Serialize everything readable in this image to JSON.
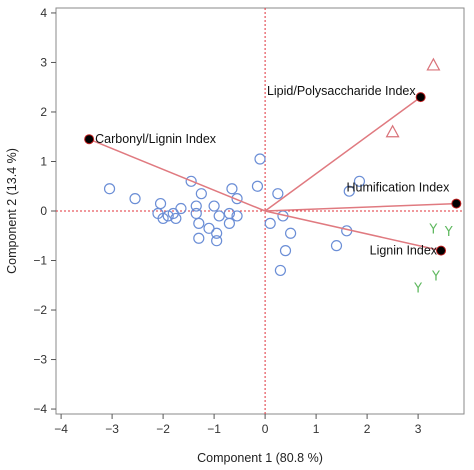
{
  "chart_data": {
    "type": "scatter",
    "title": "",
    "xlabel": "Component 1  (80.8 %)",
    "ylabel": "Component 2  (13.4 %)",
    "xlim": [
      -4.1,
      3.9
    ],
    "ylim": [
      -4.1,
      4.1
    ],
    "x_ticks": [
      -4,
      -3,
      -2,
      -1,
      0,
      1,
      2,
      3
    ],
    "y_ticks": [
      -4,
      -3,
      -2,
      -1,
      0,
      1,
      2,
      3,
      4
    ],
    "grid": false,
    "origin_lines": {
      "color": "#e0303a",
      "style": "dotted"
    },
    "colors": {
      "circle": "#6b8ed6",
      "triangle": "#d9737a",
      "y_marker": "#5fb85f",
      "loading_line": "#e07a80",
      "loading_point": "#000000",
      "loading_point_outline": "#c02020"
    },
    "series": [
      {
        "marker": "circle",
        "points": [
          [
            -3.05,
            0.45
          ],
          [
            -2.55,
            0.25
          ],
          [
            -2.1,
            -0.05
          ],
          [
            -2.05,
            0.15
          ],
          [
            -2.0,
            -0.15
          ],
          [
            -1.9,
            -0.1
          ],
          [
            -1.8,
            -0.05
          ],
          [
            -1.75,
            -0.15
          ],
          [
            -1.65,
            0.05
          ],
          [
            -1.45,
            0.6
          ],
          [
            -1.35,
            0.1
          ],
          [
            -1.35,
            -0.05
          ],
          [
            -1.3,
            -0.25
          ],
          [
            -1.3,
            -0.55
          ],
          [
            -1.25,
            0.35
          ],
          [
            -1.1,
            -0.35
          ],
          [
            -1.0,
            0.1
          ],
          [
            -0.95,
            -0.45
          ],
          [
            -0.95,
            -0.6
          ],
          [
            -0.9,
            -0.1
          ],
          [
            -0.7,
            -0.05
          ],
          [
            -0.7,
            -0.25
          ],
          [
            -0.65,
            0.45
          ],
          [
            -0.55,
            -0.1
          ],
          [
            -0.55,
            0.25
          ],
          [
            -0.15,
            0.5
          ],
          [
            -0.1,
            1.05
          ],
          [
            0.1,
            -0.25
          ],
          [
            0.25,
            0.35
          ],
          [
            0.3,
            -1.2
          ],
          [
            0.35,
            -0.1
          ],
          [
            0.4,
            -0.8
          ],
          [
            0.5,
            -0.45
          ],
          [
            1.4,
            -0.7
          ],
          [
            1.6,
            -0.4
          ],
          [
            1.65,
            0.4
          ],
          [
            1.85,
            0.6
          ]
        ]
      },
      {
        "marker": "triangle",
        "points": [
          [
            2.5,
            1.6
          ],
          [
            3.3,
            2.95
          ]
        ]
      },
      {
        "marker": "Y",
        "points": [
          [
            3.3,
            -0.35
          ],
          [
            3.6,
            -0.4
          ],
          [
            3.0,
            -1.55
          ],
          [
            3.35,
            -1.3
          ]
        ]
      }
    ],
    "loadings": [
      {
        "label": "Lipid/Polysaccharide Index",
        "x": 3.05,
        "y": 2.3
      },
      {
        "label": "Carbonyl/Lignin Index",
        "x": -3.45,
        "y": 1.45
      },
      {
        "label": "Humification Index",
        "x": 3.75,
        "y": 0.15
      },
      {
        "label": "Lignin Index",
        "x": 3.45,
        "y": -0.8
      }
    ]
  }
}
